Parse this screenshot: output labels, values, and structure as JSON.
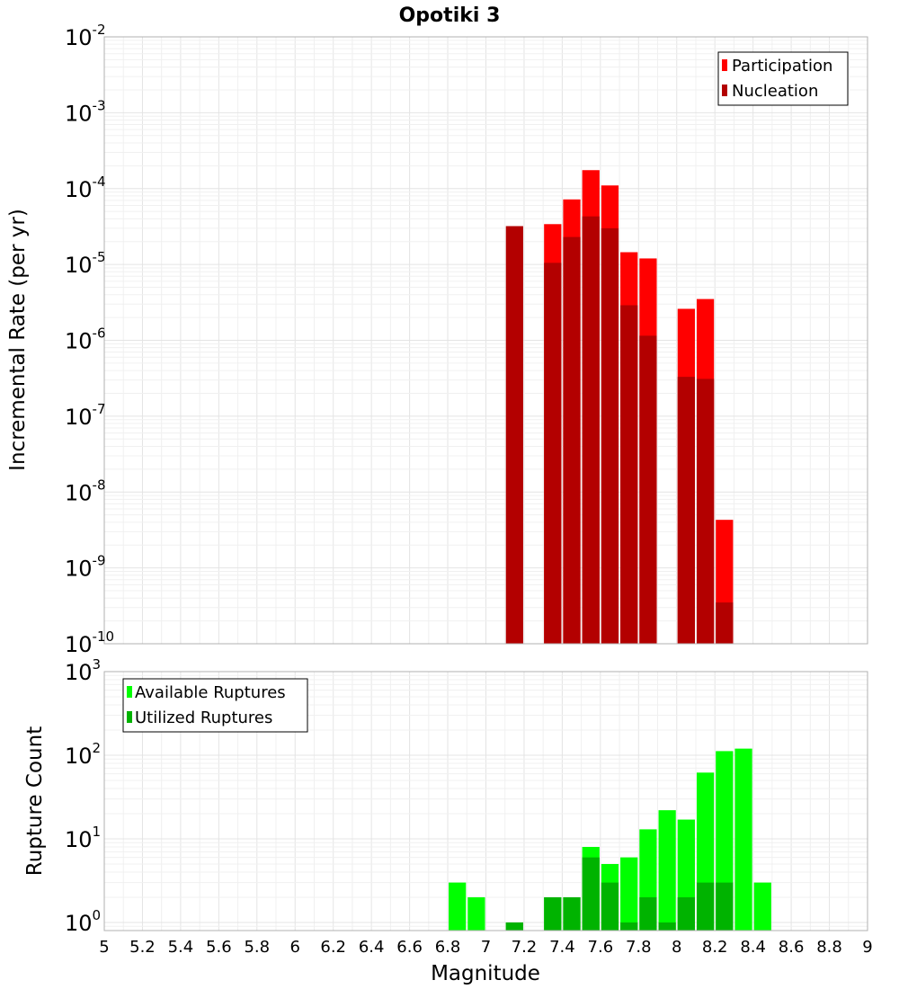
{
  "title": "Opotiki 3",
  "chart_data": [
    {
      "type": "bar",
      "title": "Opotiki 3",
      "xlabel": "Magnitude",
      "ylabel": "Incremental Rate (per yr)",
      "yscale": "log",
      "ylim_exp": [
        -10,
        -2
      ],
      "xlim": [
        5,
        9
      ],
      "bar_width": 0.1,
      "grid": true,
      "legend_position": "top-right",
      "series": [
        {
          "name": "Participation",
          "color": "#ff0000",
          "points": [
            [
              7.35,
              3.4e-05
            ],
            [
              7.45,
              7.2e-05
            ],
            [
              7.55,
              0.000175
            ],
            [
              7.65,
              0.00011
            ],
            [
              7.75,
              1.45e-05
            ],
            [
              7.85,
              1.2e-05
            ],
            [
              8.05,
              2.6e-06
            ],
            [
              8.15,
              3.5e-06
            ],
            [
              8.25,
              4.3e-09
            ]
          ]
        },
        {
          "name": "Nucleation",
          "color": "#b30000",
          "points": [
            [
              7.15,
              3.2e-05
            ],
            [
              7.35,
              1.05e-05
            ],
            [
              7.45,
              2.3e-05
            ],
            [
              7.55,
              4.3e-05
            ],
            [
              7.65,
              3e-05
            ],
            [
              7.75,
              2.9e-06
            ],
            [
              7.85,
              1.15e-06
            ],
            [
              8.05,
              3.3e-07
            ],
            [
              8.15,
              3.1e-07
            ],
            [
              8.25,
              3.5e-10
            ]
          ]
        }
      ]
    },
    {
      "type": "bar",
      "xlabel": "Magnitude",
      "ylabel": "Rupture Count",
      "yscale": "log",
      "ylim": [
        0.8,
        1000
      ],
      "xlim": [
        5,
        9
      ],
      "bar_width": 0.1,
      "grid": true,
      "legend_position": "top-left",
      "series": [
        {
          "name": "Available Ruptures",
          "color": "#00ff00",
          "points": [
            [
              6.85,
              3
            ],
            [
              6.95,
              2
            ],
            [
              7.15,
              1
            ],
            [
              7.35,
              2
            ],
            [
              7.45,
              2
            ],
            [
              7.55,
              8
            ],
            [
              7.65,
              5
            ],
            [
              7.75,
              6
            ],
            [
              7.85,
              13
            ],
            [
              7.95,
              22
            ],
            [
              8.05,
              17
            ],
            [
              8.15,
              62
            ],
            [
              8.25,
              112
            ],
            [
              8.35,
              120
            ],
            [
              8.45,
              3
            ]
          ]
        },
        {
          "name": "Utilized Ruptures",
          "color": "#00b300",
          "points": [
            [
              7.15,
              1
            ],
            [
              7.35,
              2
            ],
            [
              7.45,
              2
            ],
            [
              7.55,
              6
            ],
            [
              7.65,
              3
            ],
            [
              7.75,
              1
            ],
            [
              7.85,
              2
            ],
            [
              7.95,
              1
            ],
            [
              8.05,
              2
            ],
            [
              8.15,
              3
            ],
            [
              8.25,
              3
            ]
          ]
        }
      ]
    }
  ],
  "x_ticks": [
    "5",
    "5.2",
    "5.4",
    "5.6",
    "5.8",
    "6",
    "6.2",
    "6.4",
    "6.6",
    "6.8",
    "7",
    "7.2",
    "7.4",
    "7.6",
    "7.8",
    "8",
    "8.2",
    "8.4",
    "8.6",
    "8.8",
    "9"
  ]
}
